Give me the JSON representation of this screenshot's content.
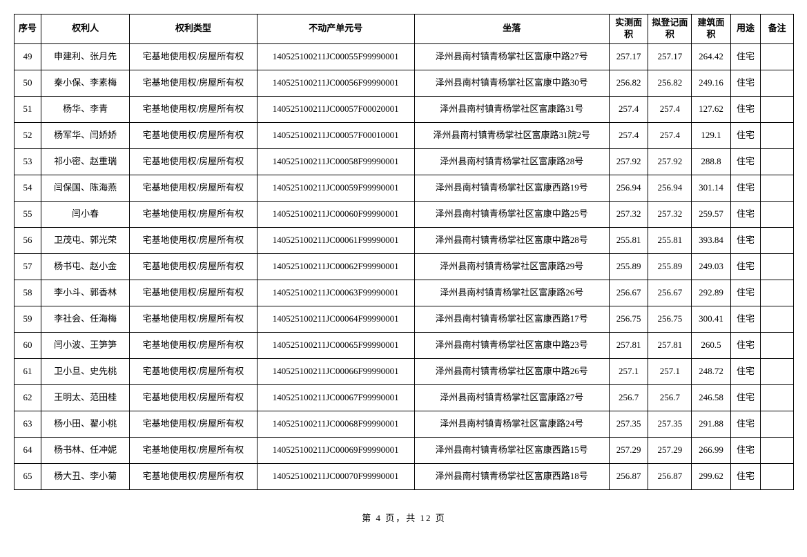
{
  "table": {
    "headers": {
      "seq": "序号",
      "owner": "权利人",
      "type": "权利类型",
      "unit": "不动产单元号",
      "location": "坐落",
      "measured_area": "实测面积",
      "registered_area": "拟登记面积",
      "building_area": "建筑面积",
      "use": "用途",
      "note": "备注"
    },
    "rows": [
      {
        "seq": "49",
        "owner": "申建利、张月先",
        "type": "宅基地使用权/房屋所有权",
        "unit": "140525100211JC00055F99990001",
        "location": "泽州县南村镇青杨掌社区富康中路27号",
        "measured": "257.17",
        "registered": "257.17",
        "building": "264.42",
        "use": "住宅",
        "note": ""
      },
      {
        "seq": "50",
        "owner": "秦小保、李素梅",
        "type": "宅基地使用权/房屋所有权",
        "unit": "140525100211JC00056F99990001",
        "location": "泽州县南村镇青杨掌社区富康中路30号",
        "measured": "256.82",
        "registered": "256.82",
        "building": "249.16",
        "use": "住宅",
        "note": ""
      },
      {
        "seq": "51",
        "owner": "杨华、李青",
        "type": "宅基地使用权/房屋所有权",
        "unit": "140525100211JC00057F00020001",
        "location": "泽州县南村镇青杨掌社区富康路31号",
        "measured": "257.4",
        "registered": "257.4",
        "building": "127.62",
        "use": "住宅",
        "note": ""
      },
      {
        "seq": "52",
        "owner": "杨军华、闫娇娇",
        "type": "宅基地使用权/房屋所有权",
        "unit": "140525100211JC00057F00010001",
        "location": "泽州县南村镇青杨掌社区富康路31院2号",
        "measured": "257.4",
        "registered": "257.4",
        "building": "129.1",
        "use": "住宅",
        "note": ""
      },
      {
        "seq": "53",
        "owner": "祁小密、赵重瑞",
        "type": "宅基地使用权/房屋所有权",
        "unit": "140525100211JC00058F99990001",
        "location": "泽州县南村镇青杨掌社区富康路28号",
        "measured": "257.92",
        "registered": "257.92",
        "building": "288.8",
        "use": "住宅",
        "note": ""
      },
      {
        "seq": "54",
        "owner": "闫保国、陈海燕",
        "type": "宅基地使用权/房屋所有权",
        "unit": "140525100211JC00059F99990001",
        "location": "泽州县南村镇青杨掌社区富康西路19号",
        "measured": "256.94",
        "registered": "256.94",
        "building": "301.14",
        "use": "住宅",
        "note": ""
      },
      {
        "seq": "55",
        "owner": "闫小春",
        "type": "宅基地使用权/房屋所有权",
        "unit": "140525100211JC00060F99990001",
        "location": "泽州县南村镇青杨掌社区富康中路25号",
        "measured": "257.32",
        "registered": "257.32",
        "building": "259.57",
        "use": "住宅",
        "note": ""
      },
      {
        "seq": "56",
        "owner": "卫茂屯、郭光荣",
        "type": "宅基地使用权/房屋所有权",
        "unit": "140525100211JC00061F99990001",
        "location": "泽州县南村镇青杨掌社区富康中路28号",
        "measured": "255.81",
        "registered": "255.81",
        "building": "393.84",
        "use": "住宅",
        "note": ""
      },
      {
        "seq": "57",
        "owner": "杨书屯、赵小金",
        "type": "宅基地使用权/房屋所有权",
        "unit": "140525100211JC00062F99990001",
        "location": "泽州县南村镇青杨掌社区富康路29号",
        "measured": "255.89",
        "registered": "255.89",
        "building": "249.03",
        "use": "住宅",
        "note": ""
      },
      {
        "seq": "58",
        "owner": "李小斗、郭香林",
        "type": "宅基地使用权/房屋所有权",
        "unit": "140525100211JC00063F99990001",
        "location": "泽州县南村镇青杨掌社区富康路26号",
        "measured": "256.67",
        "registered": "256.67",
        "building": "292.89",
        "use": "住宅",
        "note": ""
      },
      {
        "seq": "59",
        "owner": "李社会、任海梅",
        "type": "宅基地使用权/房屋所有权",
        "unit": "140525100211JC00064F99990001",
        "location": "泽州县南村镇青杨掌社区富康西路17号",
        "measured": "256.75",
        "registered": "256.75",
        "building": "300.41",
        "use": "住宅",
        "note": ""
      },
      {
        "seq": "60",
        "owner": "闫小波、王笋笋",
        "type": "宅基地使用权/房屋所有权",
        "unit": "140525100211JC00065F99990001",
        "location": "泽州县南村镇青杨掌社区富康中路23号",
        "measured": "257.81",
        "registered": "257.81",
        "building": "260.5",
        "use": "住宅",
        "note": ""
      },
      {
        "seq": "61",
        "owner": "卫小旦、史先桃",
        "type": "宅基地使用权/房屋所有权",
        "unit": "140525100211JC00066F99990001",
        "location": "泽州县南村镇青杨掌社区富康中路26号",
        "measured": "257.1",
        "registered": "257.1",
        "building": "248.72",
        "use": "住宅",
        "note": ""
      },
      {
        "seq": "62",
        "owner": "王明太、范田桂",
        "type": "宅基地使用权/房屋所有权",
        "unit": "140525100211JC00067F99990001",
        "location": "泽州县南村镇青杨掌社区富康路27号",
        "measured": "256.7",
        "registered": "256.7",
        "building": "246.58",
        "use": "住宅",
        "note": ""
      },
      {
        "seq": "63",
        "owner": "杨小田、翟小桃",
        "type": "宅基地使用权/房屋所有权",
        "unit": "140525100211JC00068F99990001",
        "location": "泽州县南村镇青杨掌社区富康路24号",
        "measured": "257.35",
        "registered": "257.35",
        "building": "291.88",
        "use": "住宅",
        "note": ""
      },
      {
        "seq": "64",
        "owner": "杨书林、任冲妮",
        "type": "宅基地使用权/房屋所有权",
        "unit": "140525100211JC00069F99990001",
        "location": "泽州县南村镇青杨掌社区富康西路15号",
        "measured": "257.29",
        "registered": "257.29",
        "building": "266.99",
        "use": "住宅",
        "note": ""
      },
      {
        "seq": "65",
        "owner": "杨大丑、李小菊",
        "type": "宅基地使用权/房屋所有权",
        "unit": "140525100211JC00070F99990001",
        "location": "泽州县南村镇青杨掌社区富康西路18号",
        "measured": "256.87",
        "registered": "256.87",
        "building": "299.62",
        "use": "住宅",
        "note": ""
      }
    ]
  },
  "pager": {
    "text": "第 4 页，共 12 页"
  }
}
